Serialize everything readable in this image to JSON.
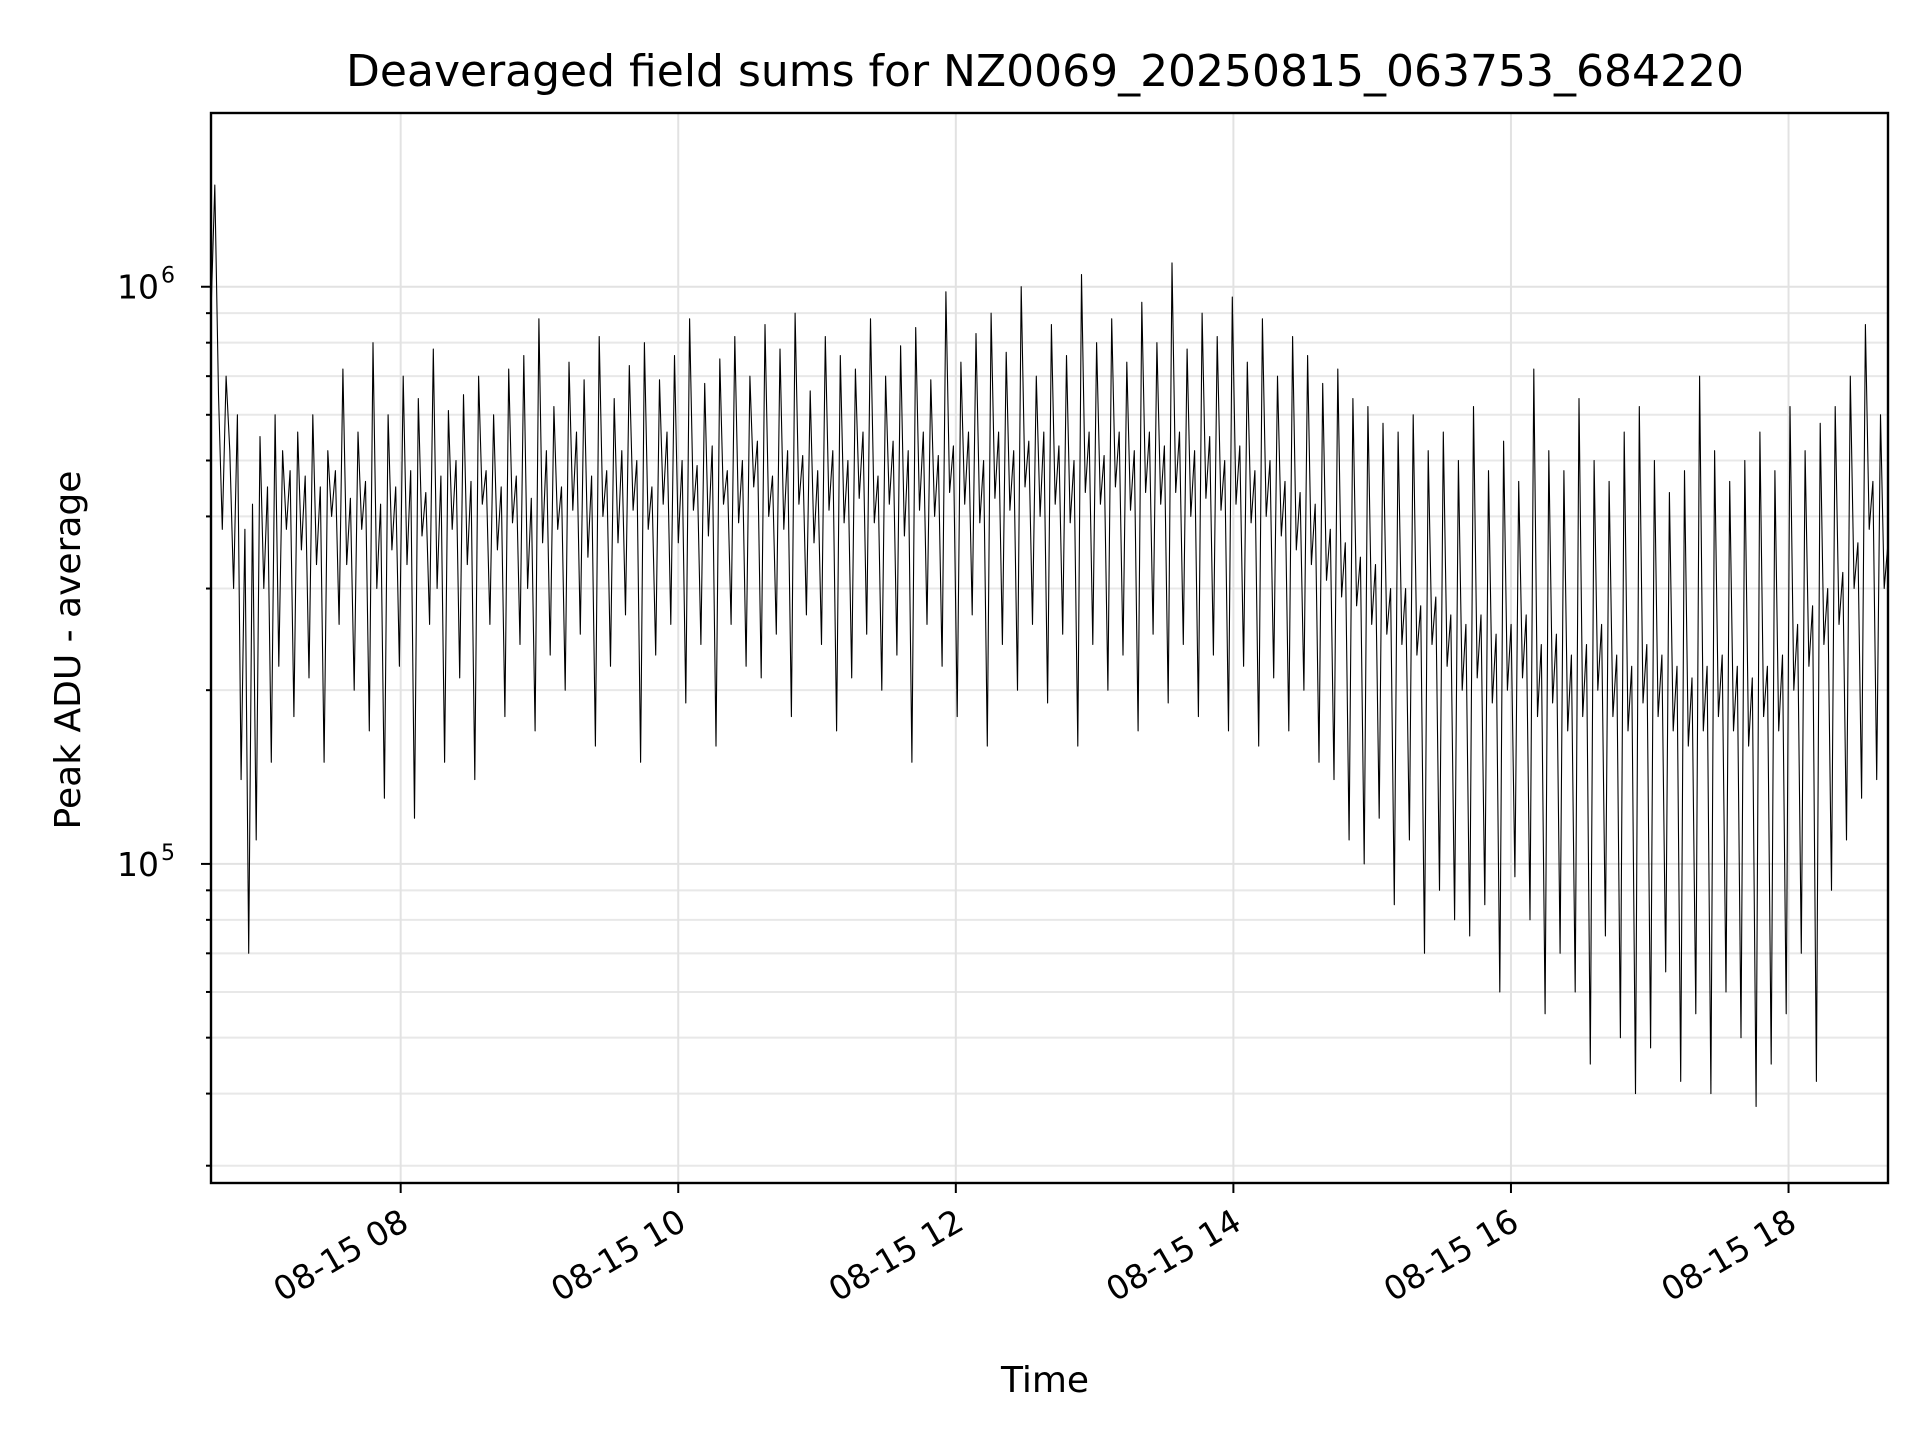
{
  "chart_data": {
    "type": "line",
    "title": "Deaveraged field sums for NZ0069_20250815_063753_684220",
    "xlabel": "Time",
    "ylabel": "Peak ADU - average",
    "yscale": "log",
    "grid": true,
    "x_range": [
      "2025-08-15 06:38",
      "2025-08-15 18:43"
    ],
    "ylim": [
      28000,
      2000000
    ],
    "x_ticks": [
      {
        "time": "2025-08-15 08:00",
        "label": "08-15 08"
      },
      {
        "time": "2025-08-15 10:00",
        "label": "08-15 10"
      },
      {
        "time": "2025-08-15 12:00",
        "label": "08-15 12"
      },
      {
        "time": "2025-08-15 14:00",
        "label": "08-15 14"
      },
      {
        "time": "2025-08-15 16:00",
        "label": "08-15 16"
      },
      {
        "time": "2025-08-15 18:00",
        "label": "08-15 18"
      }
    ],
    "y_ticks": [
      {
        "value": 100000,
        "base": "10",
        "exp": "5"
      },
      {
        "value": 1000000,
        "base": "10",
        "exp": "6"
      }
    ],
    "series_color": "#000000",
    "series": [
      {
        "x_start": "2025-08-15 06:38",
        "x_end": "2025-08-15 18:43",
        "values": [
          900000,
          1500000,
          650000,
          380000,
          700000,
          520000,
          300000,
          600000,
          140000,
          380000,
          70000,
          420000,
          110000,
          550000,
          300000,
          450000,
          150000,
          600000,
          220000,
          520000,
          380000,
          480000,
          180000,
          560000,
          350000,
          470000,
          210000,
          600000,
          330000,
          450000,
          150000,
          520000,
          400000,
          480000,
          260000,
          720000,
          330000,
          430000,
          200000,
          560000,
          380000,
          460000,
          170000,
          800000,
          300000,
          420000,
          130000,
          600000,
          350000,
          450000,
          220000,
          700000,
          330000,
          480000,
          120000,
          640000,
          370000,
          440000,
          260000,
          780000,
          300000,
          470000,
          150000,
          610000,
          380000,
          500000,
          210000,
          650000,
          330000,
          460000,
          140000,
          700000,
          420000,
          480000,
          260000,
          600000,
          350000,
          450000,
          180000,
          720000,
          390000,
          470000,
          240000,
          760000,
          300000,
          430000,
          170000,
          880000,
          360000,
          520000,
          230000,
          620000,
          380000,
          450000,
          200000,
          740000,
          410000,
          560000,
          250000,
          690000,
          340000,
          470000,
          160000,
          820000,
          400000,
          480000,
          220000,
          640000,
          360000,
          520000,
          270000,
          730000,
          410000,
          500000,
          150000,
          800000,
          380000,
          450000,
          230000,
          690000,
          420000,
          560000,
          260000,
          760000,
          360000,
          500000,
          190000,
          880000,
          410000,
          490000,
          240000,
          680000,
          370000,
          530000,
          160000,
          750000,
          420000,
          480000,
          260000,
          820000,
          390000,
          500000,
          220000,
          700000,
          450000,
          540000,
          210000,
          860000,
          400000,
          470000,
          250000,
          780000,
          380000,
          520000,
          180000,
          900000,
          420000,
          510000,
          270000,
          660000,
          360000,
          480000,
          240000,
          820000,
          410000,
          520000,
          170000,
          760000,
          390000,
          500000,
          210000,
          720000,
          430000,
          560000,
          250000,
          880000,
          390000,
          470000,
          200000,
          700000,
          420000,
          540000,
          230000,
          790000,
          370000,
          520000,
          150000,
          850000,
          410000,
          560000,
          260000,
          690000,
          400000,
          510000,
          220000,
          980000,
          440000,
          530000,
          180000,
          740000,
          420000,
          560000,
          270000,
          830000,
          390000,
          500000,
          160000,
          900000,
          430000,
          560000,
          240000,
          770000,
          410000,
          520000,
          200000,
          1000000,
          450000,
          540000,
          260000,
          700000,
          400000,
          560000,
          190000,
          860000,
          420000,
          530000,
          250000,
          760000,
          390000,
          500000,
          160000,
          1050000,
          440000,
          560000,
          240000,
          800000,
          420000,
          510000,
          200000,
          880000,
          450000,
          560000,
          230000,
          740000,
          410000,
          520000,
          170000,
          940000,
          440000,
          560000,
          250000,
          800000,
          420000,
          530000,
          190000,
          1100000,
          440000,
          560000,
          240000,
          780000,
          400000,
          520000,
          180000,
          900000,
          430000,
          550000,
          230000,
          820000,
          410000,
          500000,
          170000,
          960000,
          420000,
          530000,
          220000,
          740000,
          390000,
          480000,
          160000,
          880000,
          400000,
          500000,
          210000,
          700000,
          370000,
          460000,
          170000,
          820000,
          350000,
          440000,
          200000,
          760000,
          330000,
          420000,
          150000,
          680000,
          310000,
          380000,
          140000,
          720000,
          290000,
          360000,
          110000,
          640000,
          280000,
          340000,
          100000,
          620000,
          260000,
          330000,
          120000,
          580000,
          250000,
          300000,
          85000,
          560000,
          240000,
          300000,
          110000,
          600000,
          230000,
          280000,
          70000,
          520000,
          240000,
          290000,
          90000,
          560000,
          220000,
          270000,
          80000,
          500000,
          200000,
          260000,
          75000,
          620000,
          210000,
          270000,
          85000,
          480000,
          190000,
          250000,
          60000,
          540000,
          200000,
          260000,
          95000,
          460000,
          210000,
          270000,
          80000,
          720000,
          180000,
          240000,
          55000,
          520000,
          190000,
          250000,
          70000,
          480000,
          170000,
          230000,
          60000,
          640000,
          180000,
          240000,
          45000,
          500000,
          200000,
          260000,
          75000,
          460000,
          180000,
          230000,
          50000,
          560000,
          170000,
          220000,
          40000,
          620000,
          190000,
          240000,
          48000,
          500000,
          180000,
          230000,
          65000,
          440000,
          170000,
          220000,
          42000,
          480000,
          160000,
          210000,
          55000,
          700000,
          170000,
          220000,
          40000,
          520000,
          180000,
          230000,
          60000,
          460000,
          170000,
          220000,
          50000,
          500000,
          160000,
          210000,
          38000,
          560000,
          180000,
          220000,
          45000,
          480000,
          170000,
          230000,
          55000,
          620000,
          200000,
          260000,
          70000,
          520000,
          220000,
          280000,
          42000,
          580000,
          240000,
          300000,
          90000,
          620000,
          260000,
          320000,
          110000,
          700000,
          300000,
          360000,
          130000,
          860000,
          380000,
          460000,
          140000,
          600000,
          300000,
          360000
        ]
      }
    ]
  }
}
